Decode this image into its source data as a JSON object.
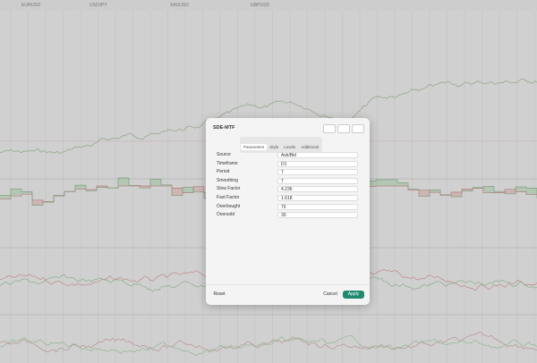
{
  "top_tabs": [
    "EURUSD",
    "USDJPY",
    "XAUUSD",
    "GBPUSD"
  ],
  "dialog": {
    "title": "SDE-MTF",
    "tabs": [
      "Parameters",
      "Style",
      "Levels",
      "Additional"
    ],
    "fields": [
      {
        "label": "Source",
        "value": "Ask/Bid"
      },
      {
        "label": "Timeframe",
        "value": "D1"
      },
      {
        "label": "Period",
        "value": "7"
      },
      {
        "label": "Smoothing",
        "value": "7"
      },
      {
        "label": "Slow Factor",
        "value": "4.236"
      },
      {
        "label": "Fast Factor",
        "value": "1.618"
      },
      {
        "label": "Overbought",
        "value": "70"
      },
      {
        "label": "Oversold",
        "value": "30"
      }
    ],
    "buttons": {
      "reset": "Reset",
      "cancel": "Cancel",
      "apply": "Apply"
    }
  }
}
